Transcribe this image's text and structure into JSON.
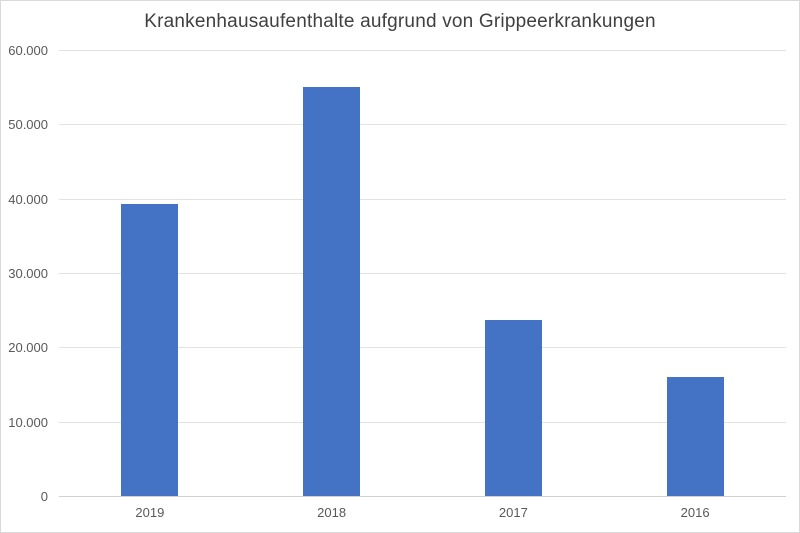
{
  "window": {
    "background_color": "#ffffff",
    "border_color": "#d9d9d9"
  },
  "chart_data": {
    "type": "bar",
    "title": "Krankenhausaufenthalte aufgrund von Grippeerkrankungen",
    "categories": [
      "2019",
      "2018",
      "2017",
      "2016"
    ],
    "values": [
      39400,
      55200,
      23800,
      16100
    ],
    "xlabel": "",
    "ylabel": "",
    "ylim": [
      0,
      60000
    ],
    "yticks": [
      0,
      10000,
      20000,
      30000,
      40000,
      50000,
      60000
    ],
    "ytick_labels": [
      "0",
      "10.000",
      "20.000",
      "30.000",
      "40.000",
      "50.000",
      "60.000"
    ],
    "grid": "horizontal",
    "legend_position": "none",
    "data_labels_shown": false,
    "bar_color": "#4472C4",
    "gridline_color": "#e2e2e2",
    "axis_line_color": "#d0d0d0",
    "title_color": "#404040",
    "label_color": "#595959"
  }
}
